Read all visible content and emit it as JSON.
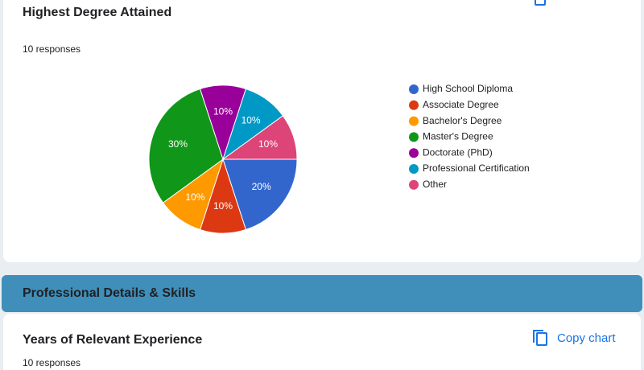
{
  "chart_data": {
    "type": "pie",
    "title": "Highest Degree Attained",
    "subtitle": "10 responses",
    "categories": [
      "High School Diploma",
      "Associate Degree",
      "Bachelor's Degree",
      "Master's Degree",
      "Doctorate (PhD)",
      "Professional Certification",
      "Other"
    ],
    "values": [
      20,
      10,
      10,
      30,
      10,
      10,
      10
    ],
    "value_labels": [
      "20%",
      "10%",
      "10%",
      "30%",
      "10%",
      "10%",
      "10%"
    ],
    "colors": [
      "#3366cc",
      "#dc3912",
      "#ff9900",
      "#109618",
      "#990099",
      "#0099c6",
      "#dd4477"
    ],
    "legend": "right"
  },
  "section": {
    "title": "Professional Details & Skills"
  },
  "next_card": {
    "title": "Years of Relevant Experience",
    "responses": "10 responses",
    "copy_button": "Copy chart"
  }
}
